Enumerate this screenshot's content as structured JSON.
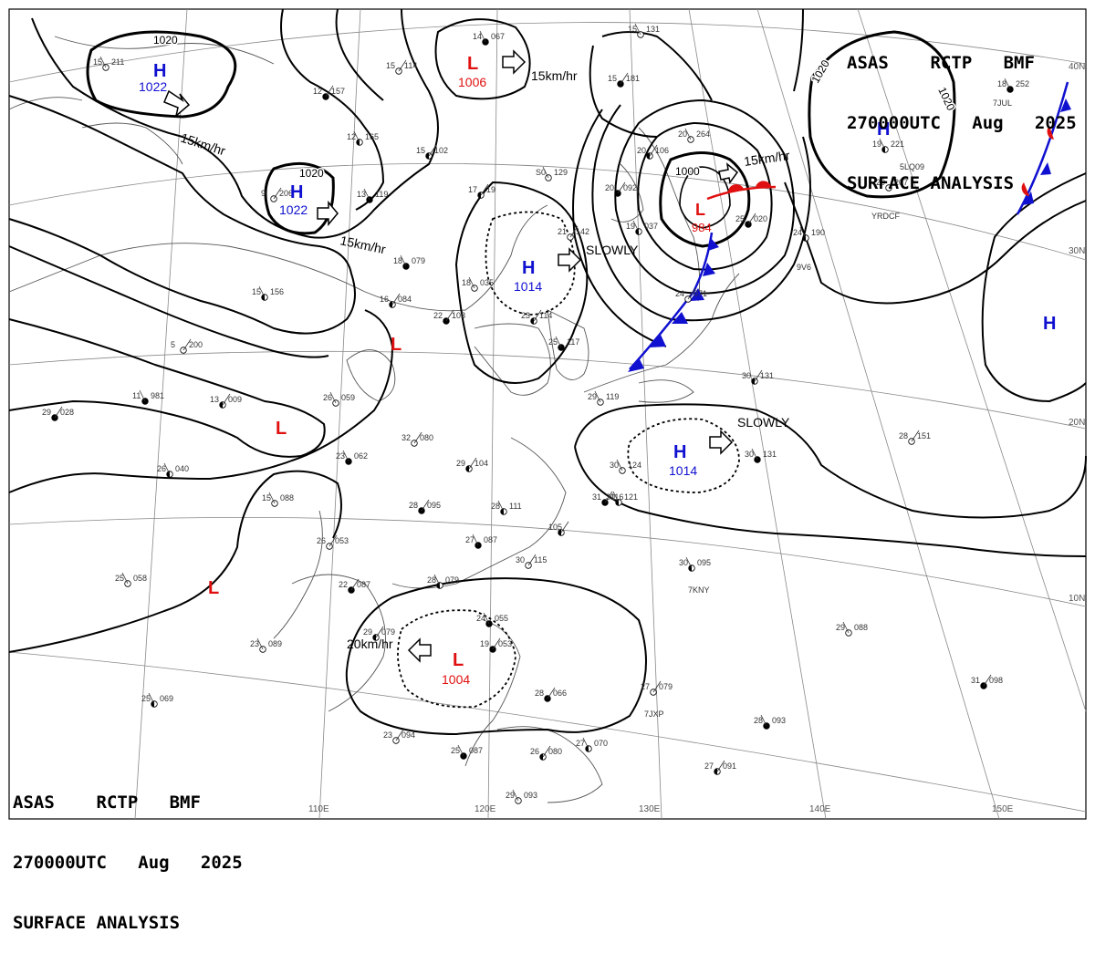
{
  "header_top": {
    "line1": "ASAS    RCTP   BMF",
    "line2": "270000UTC   Aug   2025",
    "line3": "SURFACE ANALYSIS"
  },
  "header_bottom": {
    "line1": "ASAS    RCTP   BMF",
    "line2": "270000UTC   Aug   2025",
    "line3": "SURFACE ANALYSIS"
  },
  "colors": {
    "high": "#1010d0",
    "low": "#e01010",
    "isobar": "#000000",
    "grid": "#888888",
    "coast": "#555555"
  },
  "isobar_labels": [
    "1020",
    "1020",
    "1020",
    "1020",
    "1000"
  ],
  "pressure_centers": [
    {
      "type": "H",
      "value": "1022"
    },
    {
      "type": "H",
      "value": "1022"
    },
    {
      "type": "L",
      "value": "1006"
    },
    {
      "type": "H",
      "value": "1014"
    },
    {
      "type": "L",
      "value": "984"
    },
    {
      "type": "H",
      "value": ""
    },
    {
      "type": "H",
      "value": ""
    },
    {
      "type": "L",
      "value": ""
    },
    {
      "type": "L",
      "value": ""
    },
    {
      "type": "H",
      "value": "1014"
    },
    {
      "type": "L",
      "value": ""
    },
    {
      "type": "L",
      "value": "1004"
    }
  ],
  "movements": [
    "15km/hr",
    "15km/hr",
    "15km/hr",
    "SLOWLY",
    "15km/hr",
    "SLOWLY",
    "20km/hr"
  ],
  "lat_labels": [
    "40N",
    "30N",
    "20N",
    "10N"
  ],
  "lon_labels": [
    "110E",
    "120E",
    "130E",
    "140E",
    "150E"
  ],
  "station_codes": [
    "5LQ09",
    "YRDCF",
    "7JUL",
    "9V6",
    "7KNY",
    "7JXP"
  ],
  "station_plots": [
    {
      "t": "15",
      "p": "211"
    },
    {
      "t": "12",
      "p": "157"
    },
    {
      "t": "12",
      "p": "165"
    },
    {
      "t": "15",
      "p": "114"
    },
    {
      "t": "14",
      "p": "067"
    },
    {
      "t": "15",
      "p": "102"
    },
    {
      "t": "15",
      "p": "131"
    },
    {
      "t": "15",
      "p": "181"
    },
    {
      "t": "19",
      "p": "221"
    },
    {
      "t": "9",
      "p": "206"
    },
    {
      "t": "13",
      "p": "119"
    },
    {
      "t": "17",
      "p": "19"
    },
    {
      "t": "S0",
      "p": "129"
    },
    {
      "t": "20",
      "p": "092"
    },
    {
      "t": "19",
      "p": "037"
    },
    {
      "t": "21",
      "p": "142"
    },
    {
      "t": "18",
      "p": "079"
    },
    {
      "t": "16",
      "p": "084"
    },
    {
      "t": "18",
      "p": "035"
    },
    {
      "t": "22",
      "p": "108"
    },
    {
      "t": "15",
      "p": "156"
    },
    {
      "t": "5",
      "p": "200"
    },
    {
      "t": "11",
      "p": "981"
    },
    {
      "t": "13",
      "p": "009"
    },
    {
      "t": "26",
      "p": "059"
    },
    {
      "t": "29",
      "p": "028"
    },
    {
      "t": "26",
      "p": "040"
    },
    {
      "t": "32",
      "p": "080"
    },
    {
      "t": "23",
      "p": "062"
    },
    {
      "t": "29",
      "p": "104"
    },
    {
      "t": "15",
      "p": "088"
    },
    {
      "t": "28",
      "p": "095"
    },
    {
      "t": "28",
      "p": "111"
    },
    {
      "t": "26",
      "p": "053"
    },
    {
      "t": "27",
      "p": "087"
    },
    {
      "t": "105",
      "p": ""
    },
    {
      "t": "25",
      "p": "058"
    },
    {
      "t": "22",
      "p": "087"
    },
    {
      "t": "28",
      "p": "079"
    },
    {
      "t": "30",
      "p": "115"
    },
    {
      "t": "24",
      "p": "055"
    },
    {
      "t": "29",
      "p": "079"
    },
    {
      "t": "23",
      "p": "089"
    },
    {
      "t": "19",
      "p": "053"
    },
    {
      "t": "25",
      "p": "069"
    },
    {
      "t": "23",
      "p": "094"
    },
    {
      "t": "25",
      "p": "087"
    },
    {
      "t": "26",
      "p": "080"
    },
    {
      "t": "29",
      "p": "093"
    },
    {
      "t": "28",
      "p": "066"
    },
    {
      "t": "27",
      "p": "070"
    },
    {
      "t": "27",
      "p": "079"
    },
    {
      "t": "28",
      "p": "093"
    },
    {
      "t": "27",
      "p": "091"
    },
    {
      "t": "29",
      "p": "088"
    },
    {
      "t": "31",
      "p": "098"
    },
    {
      "t": "30",
      "p": "095"
    },
    {
      "t": "28",
      "p": "151"
    },
    {
      "t": "30",
      "p": "131"
    },
    {
      "t": "30",
      "p": "131"
    },
    {
      "t": "30",
      "p": "124"
    },
    {
      "t": "31",
      "p": "116"
    },
    {
      "t": "30",
      "p": "121"
    },
    {
      "t": "24",
      "p": "071"
    },
    {
      "t": "25",
      "p": "117"
    },
    {
      "t": "23",
      "p": "114"
    },
    {
      "t": "29",
      "p": "119"
    },
    {
      "t": "25",
      "p": "020"
    },
    {
      "t": "24",
      "p": "190"
    },
    {
      "t": "20",
      "p": "207"
    },
    {
      "t": "18",
      "p": "252"
    },
    {
      "t": "20",
      "p": "106"
    },
    {
      "t": "20",
      "p": "264"
    }
  ]
}
